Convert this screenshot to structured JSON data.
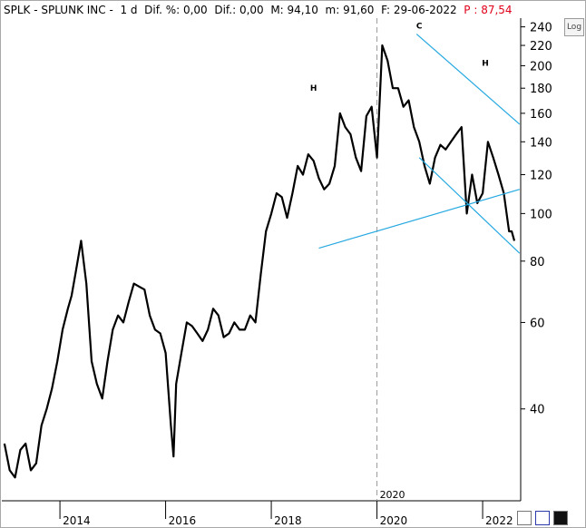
{
  "header": {
    "symbol": "SPLK - SPLUNK INC -",
    "period": "1 d",
    "dif_pct_label": "Dif. %: 0,00",
    "dif_label": "Dif.: 0,00",
    "max_label": "M: 94,10",
    "min_label": "m: 91,60",
    "date_label": "F: 29-06-2022",
    "price_label": "P : 87,54"
  },
  "controls": {
    "log_button": "Log"
  },
  "colors": {
    "price_line": "#000000",
    "trend_lines": "#27a9e1",
    "header_price": "#e0001a",
    "axis_text": "#000000",
    "vertical_marker": "#9a9a9a"
  },
  "chart_data": {
    "type": "line",
    "scale": "log",
    "ylim": [
      26,
      250
    ],
    "yticks": [
      40,
      60,
      80,
      100,
      120,
      140,
      160,
      180,
      200,
      220,
      240
    ],
    "xticks": [
      "2014",
      "2016",
      "2018",
      "2020",
      "2022"
    ],
    "vertical_marker": "2020",
    "annotations": [
      {
        "text": "H",
        "x": 2018.7,
        "y": 178
      },
      {
        "text": "C",
        "x": 2020.7,
        "y": 238
      },
      {
        "text": "H",
        "x": 2021.95,
        "y": 200
      }
    ],
    "trendlines": [
      {
        "x": [
          2018.8,
          2022.6
        ],
        "y": [
          85,
          112
        ]
      },
      {
        "x": [
          2020.65,
          2022.6
        ],
        "y": [
          232,
          152
        ]
      },
      {
        "x": [
          2020.7,
          2022.6
        ],
        "y": [
          130,
          83
        ]
      }
    ],
    "series": [
      {
        "x": [
          2012.85,
          2012.95,
          2013.05,
          2013.15,
          2013.25,
          2013.35,
          2013.45,
          2013.55,
          2013.65,
          2013.75,
          2013.85,
          2013.95,
          2014.05,
          2014.12,
          2014.2,
          2014.3,
          2014.4,
          2014.5,
          2014.6,
          2014.7,
          2014.8,
          2014.9,
          2015.0,
          2015.1,
          2015.2,
          2015.3,
          2015.4,
          2015.5,
          2015.6,
          2015.7,
          2015.8,
          2015.9,
          2016.0,
          2016.05,
          2016.1,
          2016.2,
          2016.3,
          2016.4,
          2016.5,
          2016.6,
          2016.7,
          2016.8,
          2016.9,
          2017.0,
          2017.1,
          2017.2,
          2017.3,
          2017.4,
          2017.5,
          2017.6,
          2017.7,
          2017.8,
          2017.9,
          2018.0,
          2018.1,
          2018.2,
          2018.3,
          2018.4,
          2018.5,
          2018.6,
          2018.7,
          2018.8,
          2018.9,
          2019.0,
          2019.1,
          2019.2,
          2019.3,
          2019.4,
          2019.5,
          2019.6,
          2019.7,
          2019.8,
          2019.9,
          2020.0,
          2020.1,
          2020.2,
          2020.3,
          2020.4,
          2020.5,
          2020.6,
          2020.7,
          2020.8,
          2020.9,
          2021.0,
          2021.1,
          2021.2,
          2021.3,
          2021.4,
          2021.5,
          2021.6,
          2021.7,
          2021.8,
          2021.9,
          2022.0,
          2022.1,
          2022.2,
          2022.3,
          2022.4,
          2022.45,
          2022.5
        ],
        "y": [
          34,
          30,
          29,
          33,
          34,
          30,
          31,
          37,
          40,
          44,
          50,
          58,
          64,
          68,
          76,
          88,
          72,
          50,
          45,
          42,
          50,
          58,
          62,
          60,
          66,
          72,
          71,
          70,
          62,
          58,
          57,
          52,
          37,
          32,
          45,
          52,
          60,
          59,
          57,
          55,
          58,
          64,
          62,
          56,
          57,
          60,
          58,
          58,
          62,
          60,
          75,
          92,
          100,
          110,
          108,
          98,
          110,
          125,
          120,
          132,
          128,
          118,
          112,
          115,
          125,
          160,
          150,
          145,
          130,
          122,
          158,
          165,
          130,
          220,
          205,
          180,
          180,
          165,
          170,
          150,
          140,
          125,
          115,
          130,
          138,
          135,
          140,
          145,
          150,
          100,
          120,
          105,
          110,
          140,
          130,
          120,
          110,
          92,
          92,
          88
        ]
      }
    ]
  }
}
